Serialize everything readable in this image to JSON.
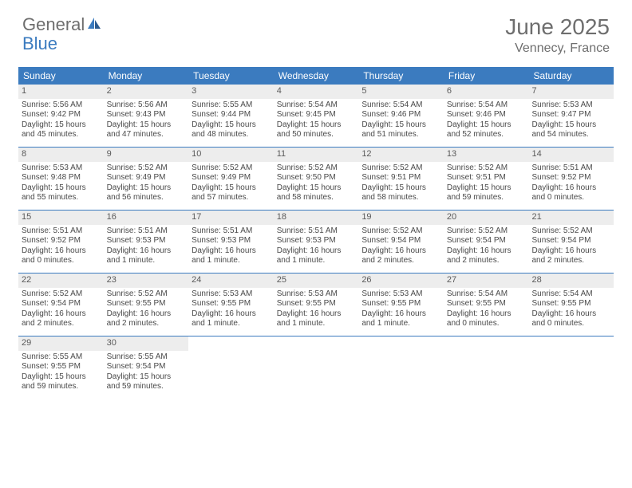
{
  "logo": {
    "text1": "General",
    "text2": "Blue"
  },
  "title": "June 2025",
  "location": "Vennecy, France",
  "colors": {
    "header_blue": "#3b7bbf",
    "light_gray": "#ededed",
    "text_gray": "#6e6e6e",
    "body_text": "#4a4a4a",
    "background": "#ffffff"
  },
  "day_headers": [
    "Sunday",
    "Monday",
    "Tuesday",
    "Wednesday",
    "Thursday",
    "Friday",
    "Saturday"
  ],
  "weeks": [
    [
      {
        "n": "1",
        "sr": "Sunrise: 5:56 AM",
        "ss": "Sunset: 9:42 PM",
        "dl1": "Daylight: 15 hours",
        "dl2": "and 45 minutes."
      },
      {
        "n": "2",
        "sr": "Sunrise: 5:56 AM",
        "ss": "Sunset: 9:43 PM",
        "dl1": "Daylight: 15 hours",
        "dl2": "and 47 minutes."
      },
      {
        "n": "3",
        "sr": "Sunrise: 5:55 AM",
        "ss": "Sunset: 9:44 PM",
        "dl1": "Daylight: 15 hours",
        "dl2": "and 48 minutes."
      },
      {
        "n": "4",
        "sr": "Sunrise: 5:54 AM",
        "ss": "Sunset: 9:45 PM",
        "dl1": "Daylight: 15 hours",
        "dl2": "and 50 minutes."
      },
      {
        "n": "5",
        "sr": "Sunrise: 5:54 AM",
        "ss": "Sunset: 9:46 PM",
        "dl1": "Daylight: 15 hours",
        "dl2": "and 51 minutes."
      },
      {
        "n": "6",
        "sr": "Sunrise: 5:54 AM",
        "ss": "Sunset: 9:46 PM",
        "dl1": "Daylight: 15 hours",
        "dl2": "and 52 minutes."
      },
      {
        "n": "7",
        "sr": "Sunrise: 5:53 AM",
        "ss": "Sunset: 9:47 PM",
        "dl1": "Daylight: 15 hours",
        "dl2": "and 54 minutes."
      }
    ],
    [
      {
        "n": "8",
        "sr": "Sunrise: 5:53 AM",
        "ss": "Sunset: 9:48 PM",
        "dl1": "Daylight: 15 hours",
        "dl2": "and 55 minutes."
      },
      {
        "n": "9",
        "sr": "Sunrise: 5:52 AM",
        "ss": "Sunset: 9:49 PM",
        "dl1": "Daylight: 15 hours",
        "dl2": "and 56 minutes."
      },
      {
        "n": "10",
        "sr": "Sunrise: 5:52 AM",
        "ss": "Sunset: 9:49 PM",
        "dl1": "Daylight: 15 hours",
        "dl2": "and 57 minutes."
      },
      {
        "n": "11",
        "sr": "Sunrise: 5:52 AM",
        "ss": "Sunset: 9:50 PM",
        "dl1": "Daylight: 15 hours",
        "dl2": "and 58 minutes."
      },
      {
        "n": "12",
        "sr": "Sunrise: 5:52 AM",
        "ss": "Sunset: 9:51 PM",
        "dl1": "Daylight: 15 hours",
        "dl2": "and 58 minutes."
      },
      {
        "n": "13",
        "sr": "Sunrise: 5:52 AM",
        "ss": "Sunset: 9:51 PM",
        "dl1": "Daylight: 15 hours",
        "dl2": "and 59 minutes."
      },
      {
        "n": "14",
        "sr": "Sunrise: 5:51 AM",
        "ss": "Sunset: 9:52 PM",
        "dl1": "Daylight: 16 hours",
        "dl2": "and 0 minutes."
      }
    ],
    [
      {
        "n": "15",
        "sr": "Sunrise: 5:51 AM",
        "ss": "Sunset: 9:52 PM",
        "dl1": "Daylight: 16 hours",
        "dl2": "and 0 minutes."
      },
      {
        "n": "16",
        "sr": "Sunrise: 5:51 AM",
        "ss": "Sunset: 9:53 PM",
        "dl1": "Daylight: 16 hours",
        "dl2": "and 1 minute."
      },
      {
        "n": "17",
        "sr": "Sunrise: 5:51 AM",
        "ss": "Sunset: 9:53 PM",
        "dl1": "Daylight: 16 hours",
        "dl2": "and 1 minute."
      },
      {
        "n": "18",
        "sr": "Sunrise: 5:51 AM",
        "ss": "Sunset: 9:53 PM",
        "dl1": "Daylight: 16 hours",
        "dl2": "and 1 minute."
      },
      {
        "n": "19",
        "sr": "Sunrise: 5:52 AM",
        "ss": "Sunset: 9:54 PM",
        "dl1": "Daylight: 16 hours",
        "dl2": "and 2 minutes."
      },
      {
        "n": "20",
        "sr": "Sunrise: 5:52 AM",
        "ss": "Sunset: 9:54 PM",
        "dl1": "Daylight: 16 hours",
        "dl2": "and 2 minutes."
      },
      {
        "n": "21",
        "sr": "Sunrise: 5:52 AM",
        "ss": "Sunset: 9:54 PM",
        "dl1": "Daylight: 16 hours",
        "dl2": "and 2 minutes."
      }
    ],
    [
      {
        "n": "22",
        "sr": "Sunrise: 5:52 AM",
        "ss": "Sunset: 9:54 PM",
        "dl1": "Daylight: 16 hours",
        "dl2": "and 2 minutes."
      },
      {
        "n": "23",
        "sr": "Sunrise: 5:52 AM",
        "ss": "Sunset: 9:55 PM",
        "dl1": "Daylight: 16 hours",
        "dl2": "and 2 minutes."
      },
      {
        "n": "24",
        "sr": "Sunrise: 5:53 AM",
        "ss": "Sunset: 9:55 PM",
        "dl1": "Daylight: 16 hours",
        "dl2": "and 1 minute."
      },
      {
        "n": "25",
        "sr": "Sunrise: 5:53 AM",
        "ss": "Sunset: 9:55 PM",
        "dl1": "Daylight: 16 hours",
        "dl2": "and 1 minute."
      },
      {
        "n": "26",
        "sr": "Sunrise: 5:53 AM",
        "ss": "Sunset: 9:55 PM",
        "dl1": "Daylight: 16 hours",
        "dl2": "and 1 minute."
      },
      {
        "n": "27",
        "sr": "Sunrise: 5:54 AM",
        "ss": "Sunset: 9:55 PM",
        "dl1": "Daylight: 16 hours",
        "dl2": "and 0 minutes."
      },
      {
        "n": "28",
        "sr": "Sunrise: 5:54 AM",
        "ss": "Sunset: 9:55 PM",
        "dl1": "Daylight: 16 hours",
        "dl2": "and 0 minutes."
      }
    ],
    [
      {
        "n": "29",
        "sr": "Sunrise: 5:55 AM",
        "ss": "Sunset: 9:55 PM",
        "dl1": "Daylight: 15 hours",
        "dl2": "and 59 minutes."
      },
      {
        "n": "30",
        "sr": "Sunrise: 5:55 AM",
        "ss": "Sunset: 9:54 PM",
        "dl1": "Daylight: 15 hours",
        "dl2": "and 59 minutes."
      },
      null,
      null,
      null,
      null,
      null
    ]
  ]
}
